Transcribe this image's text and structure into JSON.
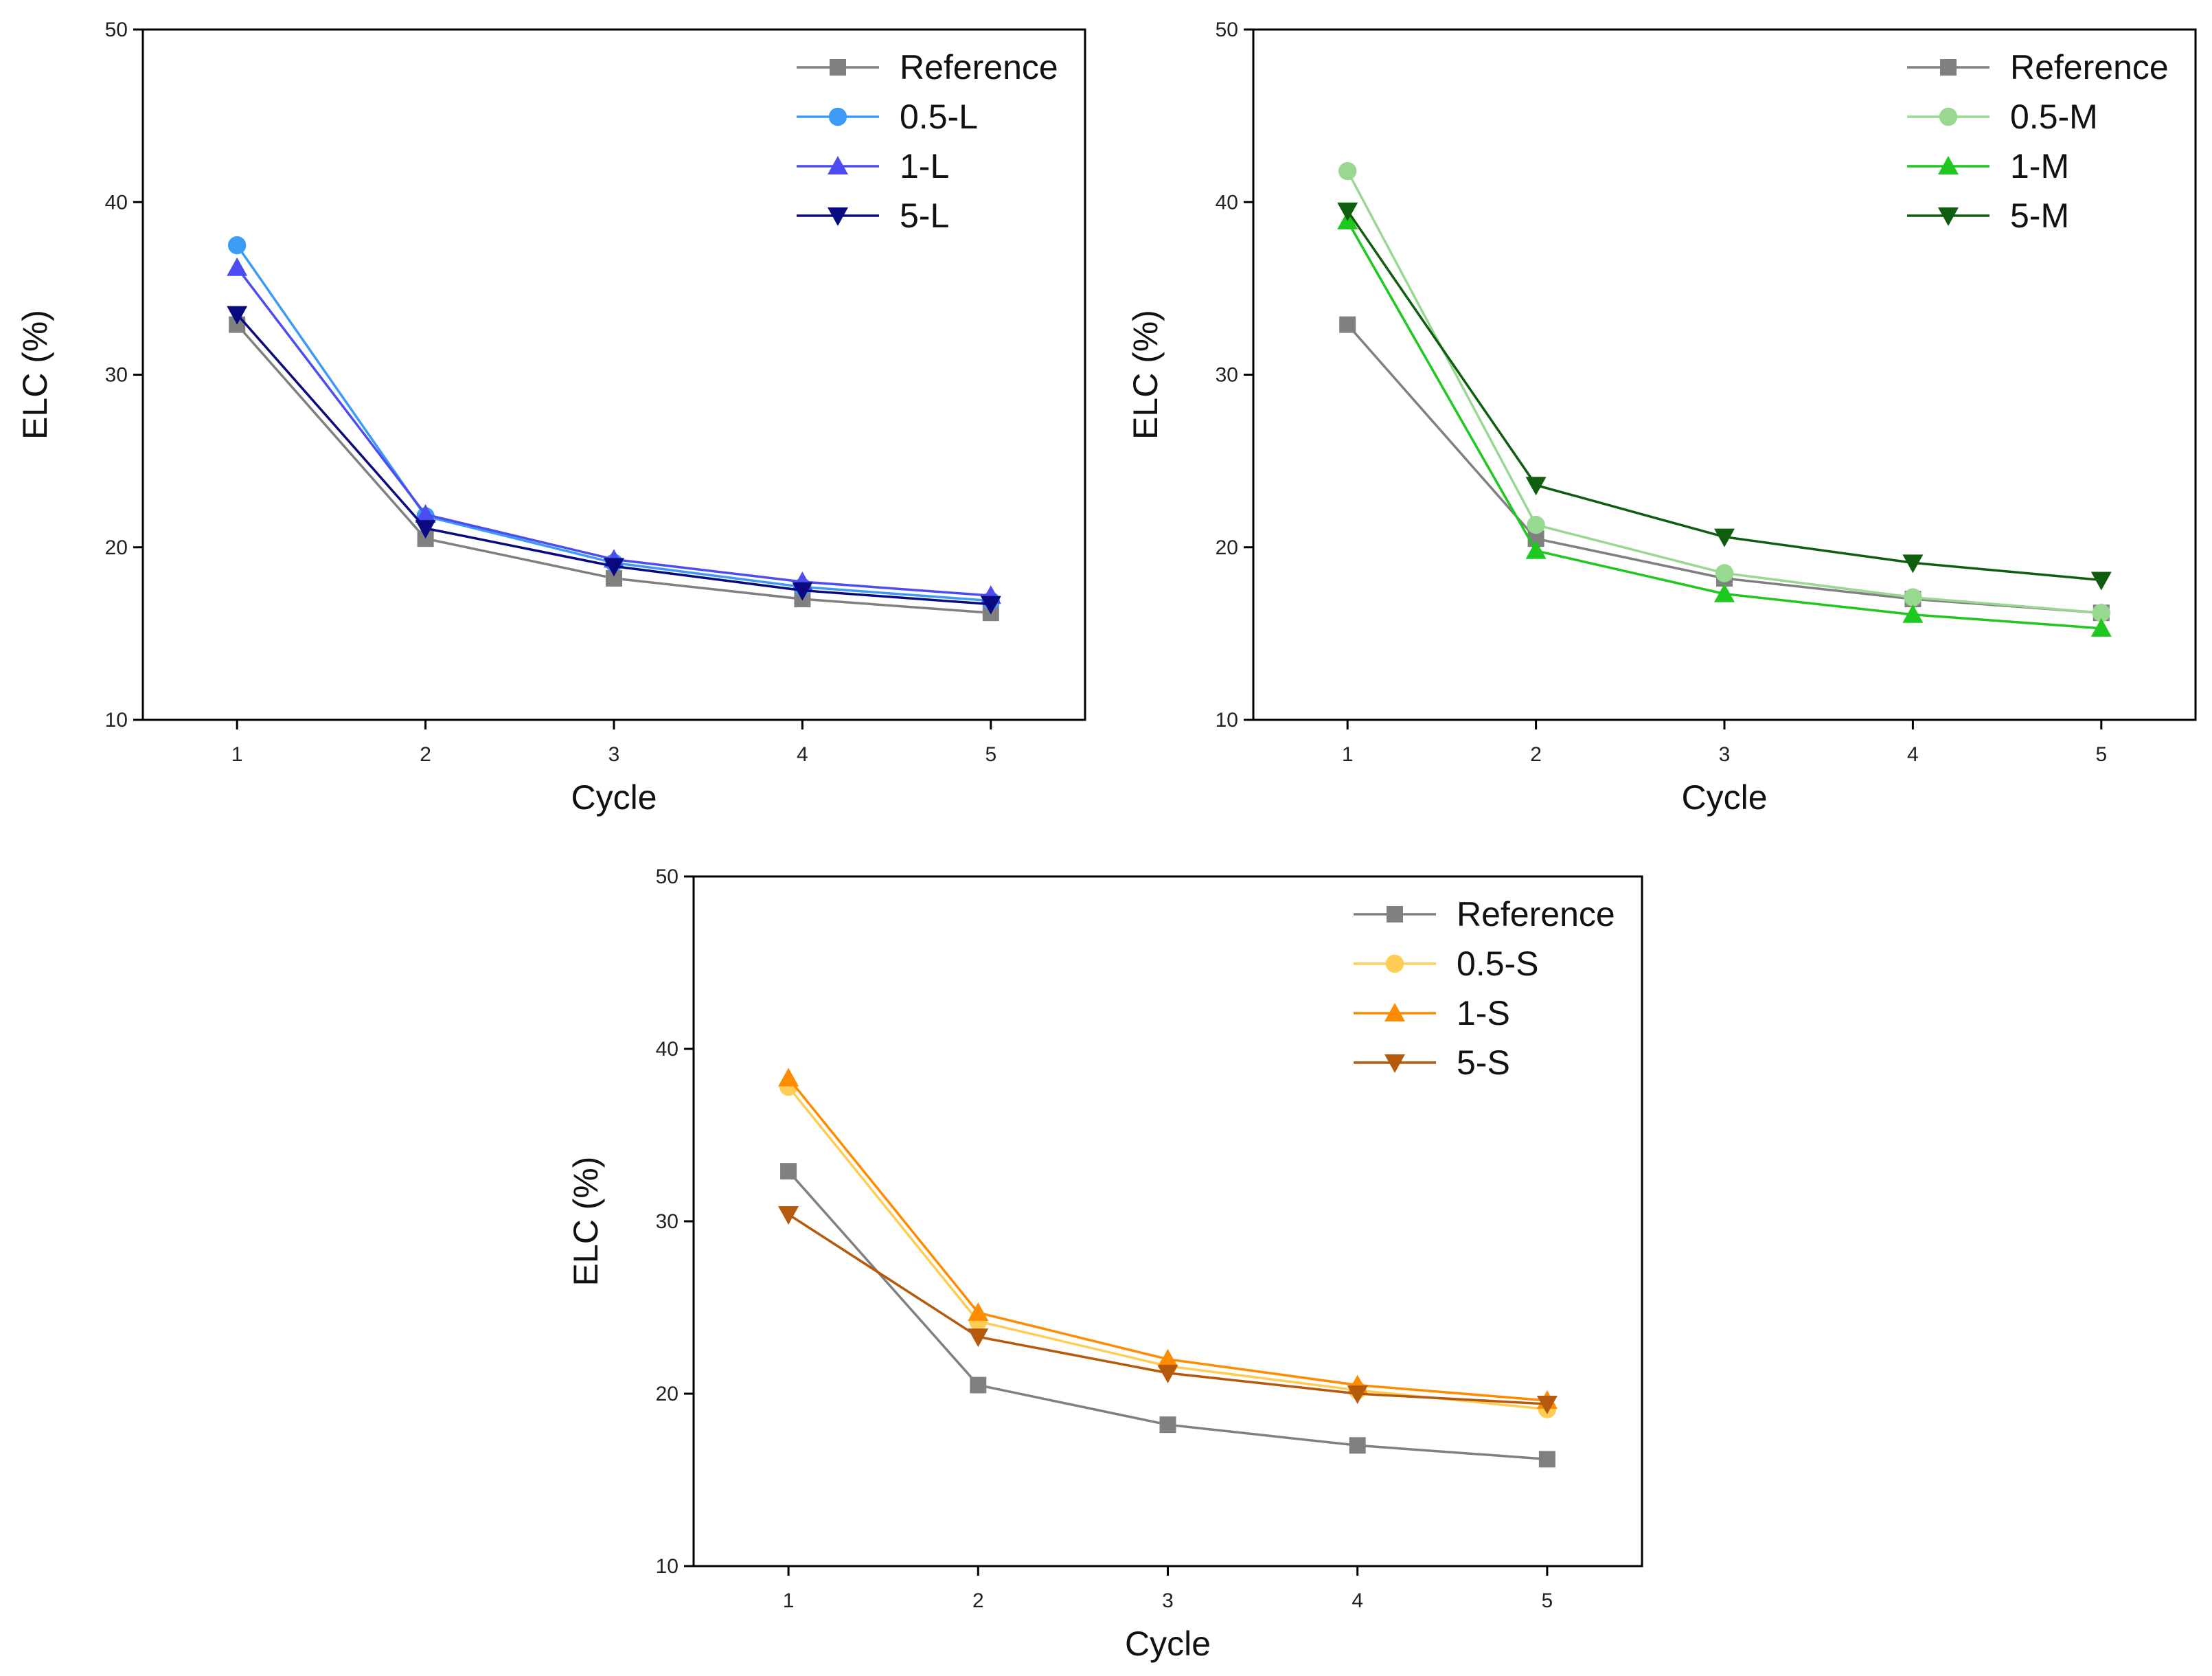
{
  "chart_data": [
    {
      "type": "line",
      "xlabel": "Cycle",
      "ylabel": "ELC (%)",
      "xlim": [
        0.5,
        5.5
      ],
      "ylim": [
        10,
        50
      ],
      "x_ticks": [
        "1",
        "2",
        "3",
        "4",
        "5"
      ],
      "y_ticks": [
        "10",
        "20",
        "30",
        "40",
        "50"
      ],
      "legend_position": "top-right",
      "x": [
        1,
        2,
        3,
        4,
        5
      ],
      "series": [
        {
          "name": "Reference",
          "values": [
            32.9,
            20.5,
            18.2,
            17.0,
            16.2
          ],
          "color": "#808080",
          "marker": "square"
        },
        {
          "name": "0.5-L",
          "values": [
            37.5,
            21.8,
            19.1,
            17.7,
            16.9
          ],
          "color": "#3d9bf5",
          "marker": "circle"
        },
        {
          "name": "1-L",
          "values": [
            36.2,
            21.9,
            19.3,
            18.0,
            17.2
          ],
          "color": "#4c4cf0",
          "marker": "triangle-up"
        },
        {
          "name": "5-L",
          "values": [
            33.5,
            21.1,
            18.9,
            17.5,
            16.7
          ],
          "color": "#0a0a80",
          "marker": "triangle-down"
        }
      ]
    },
    {
      "type": "line",
      "xlabel": "Cycle",
      "ylabel": "ELC (%)",
      "xlim": [
        0.5,
        5.5
      ],
      "ylim": [
        10,
        50
      ],
      "x_ticks": [
        "1",
        "2",
        "3",
        "4",
        "5"
      ],
      "y_ticks": [
        "10",
        "20",
        "30",
        "40",
        "50"
      ],
      "legend_position": "top-right",
      "x": [
        1,
        2,
        3,
        4,
        5
      ],
      "series": [
        {
          "name": "Reference",
          "values": [
            32.9,
            20.5,
            18.2,
            17.0,
            16.2
          ],
          "color": "#808080",
          "marker": "square"
        },
        {
          "name": "0.5-M",
          "values": [
            41.8,
            21.3,
            18.5,
            17.1,
            16.2
          ],
          "color": "#98d890",
          "marker": "circle"
        },
        {
          "name": "1-M",
          "values": [
            38.9,
            19.8,
            17.3,
            16.1,
            15.3
          ],
          "color": "#1ec81e",
          "marker": "triangle-up"
        },
        {
          "name": "5-M",
          "values": [
            39.5,
            23.6,
            20.6,
            19.1,
            18.1
          ],
          "color": "#0f5e0f",
          "marker": "triangle-down"
        }
      ]
    },
    {
      "type": "line",
      "xlabel": "Cycle",
      "ylabel": "ELC (%)",
      "xlim": [
        0.5,
        5.5
      ],
      "ylim": [
        10,
        50
      ],
      "x_ticks": [
        "1",
        "2",
        "3",
        "4",
        "5"
      ],
      "y_ticks": [
        "10",
        "20",
        "30",
        "40",
        "50"
      ],
      "legend_position": "top-right",
      "x": [
        1,
        2,
        3,
        4,
        5
      ],
      "series": [
        {
          "name": "Reference",
          "values": [
            32.9,
            20.5,
            18.2,
            17.0,
            16.2
          ],
          "color": "#808080",
          "marker": "square"
        },
        {
          "name": "0.5-S",
          "values": [
            37.8,
            24.2,
            21.6,
            20.2,
            19.1
          ],
          "color": "#ffcc55",
          "marker": "circle"
        },
        {
          "name": "1-S",
          "values": [
            38.3,
            24.7,
            22.0,
            20.5,
            19.6
          ],
          "color": "#ff8c00",
          "marker": "triangle-up"
        },
        {
          "name": "5-S",
          "values": [
            30.4,
            23.3,
            21.2,
            20.0,
            19.4
          ],
          "color": "#b5590c",
          "marker": "triangle-down"
        }
      ]
    }
  ]
}
